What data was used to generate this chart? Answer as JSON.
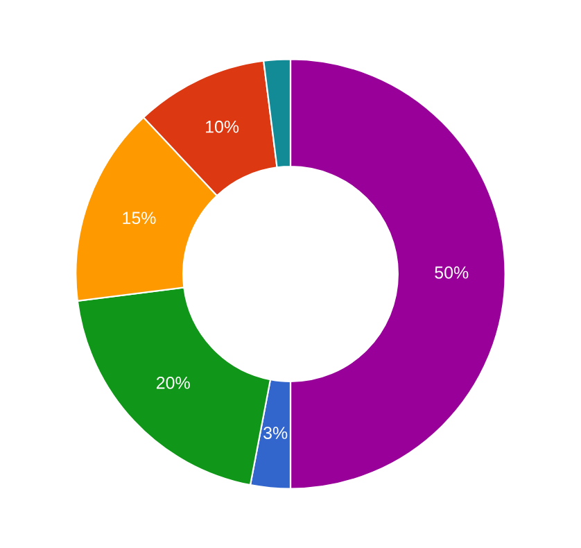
{
  "chart_data": {
    "type": "donut",
    "categories": [
      null,
      null,
      null,
      null,
      null,
      null
    ],
    "values": [
      50,
      3,
      20,
      15,
      10,
      2
    ],
    "colors": [
      "#990099",
      "#3366cc",
      "#109618",
      "#ff9900",
      "#dc3912",
      "#138b97"
    ],
    "value_labels": [
      "50%",
      "3%",
      "20%",
      "15%",
      "10%",
      null
    ],
    "legend": false
  }
}
